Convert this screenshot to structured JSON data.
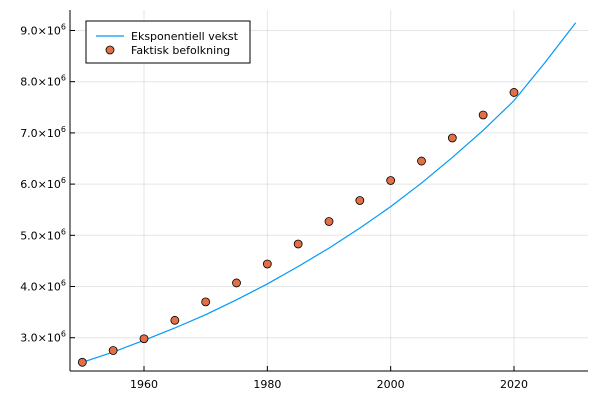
{
  "chart_data": {
    "type": "line",
    "title": "",
    "xlabel": "",
    "ylabel": "",
    "xlim": [
      1948,
      2032
    ],
    "ylim": [
      2350000,
      9400000
    ],
    "x_ticks": [
      1960,
      1980,
      2000,
      2020
    ],
    "x_tick_labels": [
      "1960",
      "1980",
      "2000",
      "2020"
    ],
    "y_ticks": [
      3000000,
      4000000,
      5000000,
      6000000,
      7000000,
      8000000,
      9000000
    ],
    "y_tick_labels": [
      {
        "base": "3.0×10",
        "exp": "6"
      },
      {
        "base": "4.0×10",
        "exp": "6"
      },
      {
        "base": "5.0×10",
        "exp": "6"
      },
      {
        "base": "6.0×10",
        "exp": "6"
      },
      {
        "base": "7.0×10",
        "exp": "6"
      },
      {
        "base": "8.0×10",
        "exp": "6"
      },
      {
        "base": "9.0×10",
        "exp": "6"
      }
    ],
    "grid": true,
    "legend_position": "top-left",
    "series": [
      {
        "name": "Eksponentiell vekst",
        "kind": "line",
        "color": "#009AFA",
        "x": [
          1950,
          1955,
          1960,
          1965,
          1970,
          1975,
          1980,
          1985,
          1990,
          1995,
          2000,
          2005,
          2010,
          2015,
          2020,
          2025,
          2030
        ],
        "y": [
          2520000,
          2720000,
          2950000,
          3190000,
          3450000,
          3740000,
          4050000,
          4390000,
          4750000,
          5140000,
          5560000,
          6020000,
          6520000,
          7050000,
          7630000,
          8370000,
          9150000
        ]
      },
      {
        "name": "Faktisk befolkning",
        "kind": "scatter",
        "color": "#E26F46",
        "x": [
          1950,
          1955,
          1960,
          1965,
          1970,
          1975,
          1980,
          1985,
          1990,
          1995,
          2000,
          2005,
          2010,
          2015,
          2020
        ],
        "y": [
          2520000,
          2750000,
          2980000,
          3340000,
          3700000,
          4070000,
          4440000,
          4830000,
          5270000,
          5680000,
          6070000,
          6450000,
          6900000,
          7350000,
          7790000
        ]
      }
    ]
  }
}
